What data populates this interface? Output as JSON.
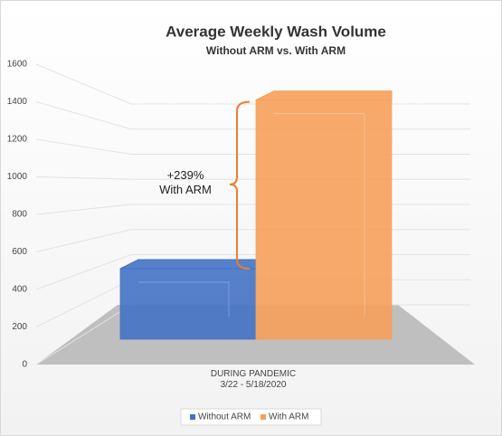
{
  "chart_data": {
    "type": "bar3d",
    "title": "Average Weekly Wash Volume",
    "subtitle": "Without ARM vs. With ARM",
    "categories": [
      "DURING PANDEMIC\n3/22 - 5/18/2020"
    ],
    "series": [
      {
        "name": "Without ARM",
        "color": "#4472c4",
        "values": [
          416
        ]
      },
      {
        "name": "With ARM",
        "color": "#f5a05a",
        "values": [
          1410
        ]
      }
    ],
    "annotation": "+239%\nWith ARM",
    "ylim": [
      0,
      1600
    ],
    "yticks": [
      0,
      200,
      400,
      600,
      800,
      1000,
      1200,
      1400,
      1600
    ],
    "grid": true,
    "legend": "bottom"
  }
}
